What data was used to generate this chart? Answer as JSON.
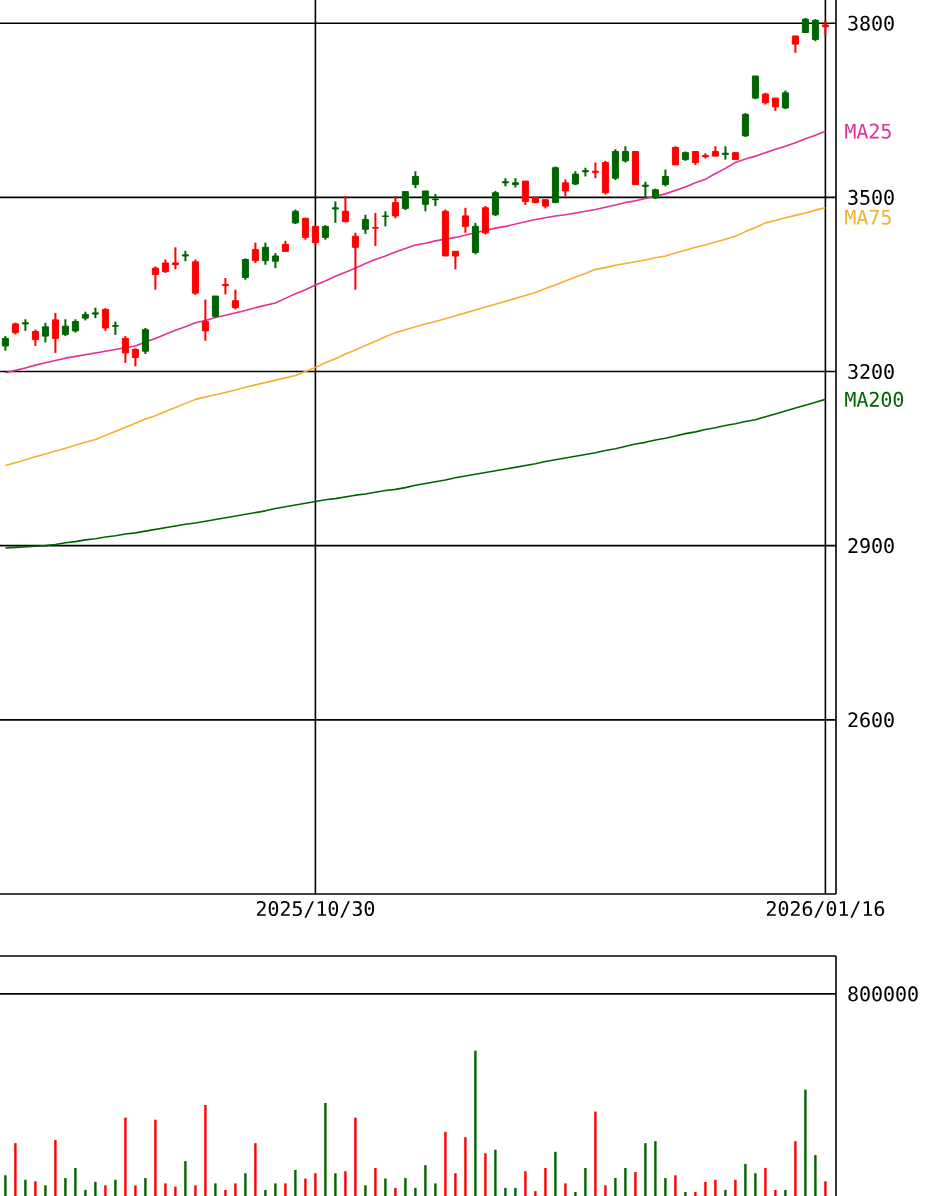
{
  "chart_data": [
    {
      "type": "candlestick",
      "categories": [
        null,
        null,
        null,
        null,
        null,
        null,
        null,
        null,
        null,
        null,
        null,
        null,
        null,
        null,
        null,
        null,
        null,
        null,
        null,
        null,
        null,
        null,
        null,
        null,
        null,
        null,
        null,
        null,
        null,
        null,
        null,
        "2025/10/30",
        null,
        null,
        null,
        null,
        null,
        null,
        null,
        null,
        null,
        null,
        null,
        null,
        null,
        null,
        null,
        null,
        null,
        null,
        null,
        null,
        null,
        null,
        null,
        null,
        null,
        null,
        null,
        null,
        null,
        null,
        null,
        null,
        null,
        null,
        null,
        null,
        null,
        null,
        null,
        null,
        null,
        null,
        null,
        null,
        null,
        null,
        null,
        null,
        null,
        null,
        "2026/01/16"
      ],
      "ohlc": [
        [
          3257,
          3261,
          3236,
          3244
        ],
        [
          3267,
          3284,
          3264,
          3282
        ],
        [
          3284,
          3290,
          3270,
          3282
        ],
        [
          3255,
          3272,
          3244,
          3269
        ],
        [
          3277,
          3284,
          3250,
          3261
        ],
        [
          3257,
          3301,
          3232,
          3289
        ],
        [
          3278,
          3290,
          3261,
          3264
        ],
        [
          3286,
          3290,
          3267,
          3270
        ],
        [
          3298,
          3303,
          3288,
          3292
        ],
        [
          3301,
          3310,
          3292,
          3299
        ],
        [
          3275,
          3309,
          3270,
          3307
        ],
        [
          3279,
          3286,
          3263,
          3278
        ],
        [
          3232,
          3261,
          3215,
          3257
        ],
        [
          3224,
          3240,
          3209,
          3238
        ],
        [
          3272,
          3275,
          3230,
          3235
        ],
        [
          3367,
          3381,
          3341,
          3378
        ],
        [
          3372,
          3393,
          3370,
          3387
        ],
        [
          3384,
          3414,
          3376,
          3387
        ],
        [
          3401,
          3408,
          3390,
          3399
        ],
        [
          3335,
          3393,
          3332,
          3389
        ],
        [
          3270,
          3324,
          3253,
          3286
        ],
        [
          3330,
          3330,
          3293,
          3295
        ],
        [
          3348,
          3361,
          3333,
          3350
        ],
        [
          3310,
          3341,
          3307,
          3322
        ],
        [
          3393,
          3395,
          3358,
          3362
        ],
        [
          3391,
          3422,
          3387,
          3410
        ],
        [
          3414,
          3422,
          3384,
          3391
        ],
        [
          3399,
          3404,
          3378,
          3390
        ],
        [
          3407,
          3425,
          3407,
          3419
        ],
        [
          3476,
          3479,
          3454,
          3456
        ],
        [
          3431,
          3464,
          3427,
          3464
        ],
        [
          3422,
          3450,
          3418,
          3450
        ],
        [
          3450,
          3452,
          3427,
          3431
        ],
        [
          3482,
          3493,
          3456,
          3480
        ],
        [
          3458,
          3502,
          3458,
          3476
        ],
        [
          3414,
          3439,
          3341,
          3433
        ],
        [
          3462,
          3470,
          3437,
          3445
        ],
        [
          3447,
          3473,
          3416,
          3448
        ],
        [
          3468,
          3476,
          3450,
          3467
        ],
        [
          3468,
          3502,
          3464,
          3491
        ],
        [
          3510,
          3510,
          3478,
          3481
        ],
        [
          3536,
          3545,
          3516,
          3522
        ],
        [
          3511,
          3511,
          3476,
          3488
        ],
        [
          3497,
          3506,
          3485,
          3496
        ],
        [
          3399,
          3479,
          3399,
          3476
        ],
        [
          3399,
          3407,
          3376,
          3407
        ],
        [
          3450,
          3482,
          3439,
          3468
        ],
        [
          3450,
          3456,
          3402,
          3405
        ],
        [
          3439,
          3485,
          3436,
          3482
        ],
        [
          3508,
          3511,
          3468,
          3470
        ],
        [
          3527,
          3533,
          3519,
          3525
        ],
        [
          3525,
          3533,
          3517,
          3522
        ],
        [
          3493,
          3528,
          3487,
          3528
        ],
        [
          3491,
          3500,
          3490,
          3500
        ],
        [
          3485,
          3496,
          3481,
          3496
        ],
        [
          3551,
          3553,
          3490,
          3491
        ],
        [
          3511,
          3531,
          3502,
          3525
        ],
        [
          3540,
          3545,
          3521,
          3523
        ],
        [
          3546,
          3551,
          3536,
          3544
        ],
        [
          3543,
          3560,
          3533,
          3545
        ],
        [
          3508,
          3563,
          3505,
          3560
        ],
        [
          3579,
          3583,
          3530,
          3533
        ],
        [
          3579,
          3588,
          3560,
          3563
        ],
        [
          3522,
          3579,
          3522,
          3579
        ],
        [
          3521,
          3527,
          3499,
          3519
        ],
        [
          3513,
          3515,
          3497,
          3499
        ],
        [
          3536,
          3548,
          3519,
          3522
        ],
        [
          3556,
          3588,
          3556,
          3586
        ],
        [
          3577,
          3579,
          3563,
          3565
        ],
        [
          3560,
          3579,
          3556,
          3579
        ],
        [
          3570,
          3576,
          3567,
          3572
        ],
        [
          3571,
          3588,
          3571,
          3579
        ],
        [
          3576,
          3588,
          3565,
          3574
        ],
        [
          3565,
          3577,
          3565,
          3577
        ],
        [
          3643,
          3645,
          3604,
          3606
        ],
        [
          3709,
          3709,
          3669,
          3671
        ],
        [
          3663,
          3680,
          3660,
          3678
        ],
        [
          3656,
          3671,
          3649,
          3671
        ],
        [
          3680,
          3684,
          3652,
          3654
        ],
        [
          3764,
          3778,
          3749,
          3778
        ],
        [
          3807,
          3809,
          3784,
          3784
        ],
        [
          3805,
          3807,
          3769,
          3772
        ],
        [
          3794,
          3805,
          3778,
          3797
        ]
      ],
      "colors": [
        "#006400",
        "#ff0000",
        "#006400",
        "#ff0000",
        "#006400",
        "#ff0000",
        "#006400",
        "#006400",
        "#006400",
        "#006400",
        "#ff0000",
        "#006400",
        "#ff0000",
        "#ff0000",
        "#006400",
        "#ff0000",
        "#ff0000",
        "#ff0000",
        "#006400",
        "#ff0000",
        "#ff0000",
        "#006400",
        "#ff0000",
        "#ff0000",
        "#006400",
        "#ff0000",
        "#006400",
        "#006400",
        "#ff0000",
        "#006400",
        "#ff0000",
        "#ff0000",
        "#006400",
        "#006400",
        "#ff0000",
        "#ff0000",
        "#006400",
        "#ff0000",
        "#006400",
        "#ff0000",
        "#006400",
        "#006400",
        "#006400",
        "#006400",
        "#ff0000",
        "#ff0000",
        "#ff0000",
        "#006400",
        "#ff0000",
        "#006400",
        "#006400",
        "#006400",
        "#ff0000",
        "#ff0000",
        "#ff0000",
        "#006400",
        "#ff0000",
        "#006400",
        "#006400",
        "#ff0000",
        "#ff0000",
        "#006400",
        "#006400",
        "#ff0000",
        "#006400",
        "#006400",
        "#006400",
        "#ff0000",
        "#006400",
        "#ff0000",
        "#ff0000",
        "#ff0000",
        "#006400",
        "#ff0000",
        "#006400",
        "#006400",
        "#ff0000",
        "#ff0000",
        "#006400",
        "#ff0000",
        "#006400",
        "#006400",
        "#ff0000"
      ],
      "series": [
        {
          "type": "line",
          "name": "MA25",
          "color": "#e0309a",
          "values": [
            3198,
            3202,
            3206,
            3211,
            3215,
            3219,
            3223,
            3226,
            3229,
            3232,
            3235,
            3238,
            3241,
            3244,
            3251,
            3257,
            3264,
            3271,
            3277,
            3284,
            3288,
            3293,
            3297,
            3301,
            3305,
            3310,
            3314,
            3318,
            3326,
            3334,
            3341,
            3349,
            3356,
            3364,
            3371,
            3378,
            3386,
            3393,
            3399,
            3406,
            3412,
            3418,
            3421,
            3425,
            3428,
            3431,
            3435,
            3439,
            3443,
            3447,
            3450,
            3454,
            3458,
            3462,
            3465,
            3468,
            3470,
            3473,
            3476,
            3479,
            3483,
            3487,
            3491,
            3494,
            3498,
            3502,
            3506,
            3512,
            3518,
            3525,
            3531,
            3541,
            3550,
            3560,
            3566,
            3571,
            3577,
            3583,
            3588,
            3594,
            3601,
            3607,
            3614
          ]
        },
        {
          "type": "line",
          "name": "MA75",
          "color": "#f0b030",
          "values": [
            3038,
            3043,
            3048,
            3053,
            3058,
            3063,
            3068,
            3073,
            3078,
            3083,
            3090,
            3097,
            3104,
            3111,
            3118,
            3124,
            3131,
            3138,
            3145,
            3152,
            3156,
            3160,
            3164,
            3168,
            3173,
            3177,
            3181,
            3185,
            3189,
            3193,
            3200,
            3207,
            3215,
            3222,
            3230,
            3237,
            3245,
            3252,
            3260,
            3267,
            3272,
            3277,
            3282,
            3286,
            3291,
            3296,
            3301,
            3306,
            3311,
            3316,
            3321,
            3326,
            3331,
            3336,
            3343,
            3349,
            3356,
            3363,
            3369,
            3376,
            3379,
            3383,
            3386,
            3389,
            3392,
            3396,
            3399,
            3404,
            3409,
            3414,
            3418,
            3423,
            3428,
            3433,
            3441,
            3448,
            3456,
            3460,
            3465,
            3469,
            3473,
            3478,
            3482
          ]
        },
        {
          "type": "line",
          "name": "MA200",
          "color": "#006400",
          "values": [
            2896,
            2897,
            2898,
            2899,
            2900,
            2902,
            2905,
            2907,
            2910,
            2912,
            2915,
            2917,
            2920,
            2922,
            2925,
            2928,
            2931,
            2934,
            2937,
            2939,
            2942,
            2945,
            2948,
            2951,
            2954,
            2957,
            2960,
            2964,
            2967,
            2970,
            2973,
            2976,
            2979,
            2981,
            2984,
            2987,
            2989,
            2992,
            2995,
            2997,
            3000,
            3004,
            3007,
            3010,
            3013,
            3017,
            3020,
            3023,
            3026,
            3029,
            3032,
            3035,
            3038,
            3041,
            3045,
            3048,
            3051,
            3054,
            3057,
            3060,
            3064,
            3067,
            3071,
            3075,
            3078,
            3082,
            3085,
            3089,
            3093,
            3096,
            3100,
            3103,
            3107,
            3110,
            3114,
            3117,
            3122,
            3127,
            3132,
            3137,
            3142,
            3147,
            3152
          ]
        }
      ],
      "ylim": [
        2300,
        3840
      ],
      "yticks": [
        2600,
        2900,
        3200,
        3500,
        3800
      ],
      "grid": true
    },
    {
      "type": "bar",
      "categories": [
        null,
        null,
        null,
        null,
        null,
        null,
        null,
        null,
        null,
        null,
        null,
        null,
        null,
        null,
        null,
        null,
        null,
        null,
        null,
        null,
        null,
        null,
        null,
        null,
        null,
        null,
        null,
        null,
        null,
        null,
        null,
        null,
        null,
        null,
        null,
        null,
        null,
        null,
        null,
        null,
        null,
        null,
        null,
        null,
        null,
        null,
        null,
        null,
        null,
        null,
        null,
        null,
        null,
        null,
        null,
        null,
        null,
        null,
        null,
        null,
        null,
        null,
        null,
        null,
        null,
        null,
        null,
        null,
        null,
        null,
        null,
        null,
        null,
        null,
        null,
        null,
        null,
        null,
        null,
        null,
        null,
        null,
        null
      ],
      "values": [
        82000,
        209000,
        64000,
        58000,
        42000,
        222000,
        71000,
        111000,
        24000,
        56000,
        42000,
        64000,
        310000,
        42000,
        71000,
        302000,
        50000,
        37000,
        138000,
        42000,
        360000,
        50000,
        24000,
        50000,
        90000,
        209000,
        24000,
        50000,
        50000,
        103000,
        69000,
        90000,
        368000,
        90000,
        98000,
        310000,
        42000,
        111000,
        69000,
        32000,
        71000,
        32000,
        122000,
        50000,
        254000,
        90000,
        233000,
        575000,
        169000,
        183000,
        32000,
        32000,
        98000,
        19000,
        111000,
        175000,
        50000,
        16000,
        111000,
        334000,
        42000,
        71000,
        111000,
        95000,
        209000,
        217000,
        71000,
        82000,
        16000,
        16000,
        56000,
        64000,
        24000,
        64000,
        127000,
        90000,
        111000,
        24000,
        24000,
        217000,
        421000,
        162000,
        58000
      ],
      "colors": [
        "#006400",
        "#ff0000",
        "#006400",
        "#ff0000",
        "#006400",
        "#ff0000",
        "#006400",
        "#006400",
        "#006400",
        "#006400",
        "#ff0000",
        "#006400",
        "#ff0000",
        "#ff0000",
        "#006400",
        "#ff0000",
        "#ff0000",
        "#ff0000",
        "#006400",
        "#ff0000",
        "#ff0000",
        "#006400",
        "#ff0000",
        "#ff0000",
        "#006400",
        "#ff0000",
        "#006400",
        "#006400",
        "#ff0000",
        "#006400",
        "#ff0000",
        "#ff0000",
        "#006400",
        "#006400",
        "#ff0000",
        "#ff0000",
        "#006400",
        "#ff0000",
        "#006400",
        "#ff0000",
        "#006400",
        "#006400",
        "#006400",
        "#006400",
        "#ff0000",
        "#ff0000",
        "#ff0000",
        "#006400",
        "#ff0000",
        "#006400",
        "#006400",
        "#006400",
        "#ff0000",
        "#ff0000",
        "#ff0000",
        "#006400",
        "#ff0000",
        "#006400",
        "#006400",
        "#ff0000",
        "#ff0000",
        "#006400",
        "#006400",
        "#ff0000",
        "#006400",
        "#006400",
        "#006400",
        "#ff0000",
        "#006400",
        "#ff0000",
        "#ff0000",
        "#ff0000",
        "#006400",
        "#ff0000",
        "#006400",
        "#006400",
        "#ff0000",
        "#ff0000",
        "#006400",
        "#ff0000",
        "#006400",
        "#006400",
        "#ff0000"
      ],
      "ylim": [
        0,
        950000
      ],
      "yticks": [
        800000
      ],
      "grid": "y",
      "tick_labels": "y"
    }
  ]
}
